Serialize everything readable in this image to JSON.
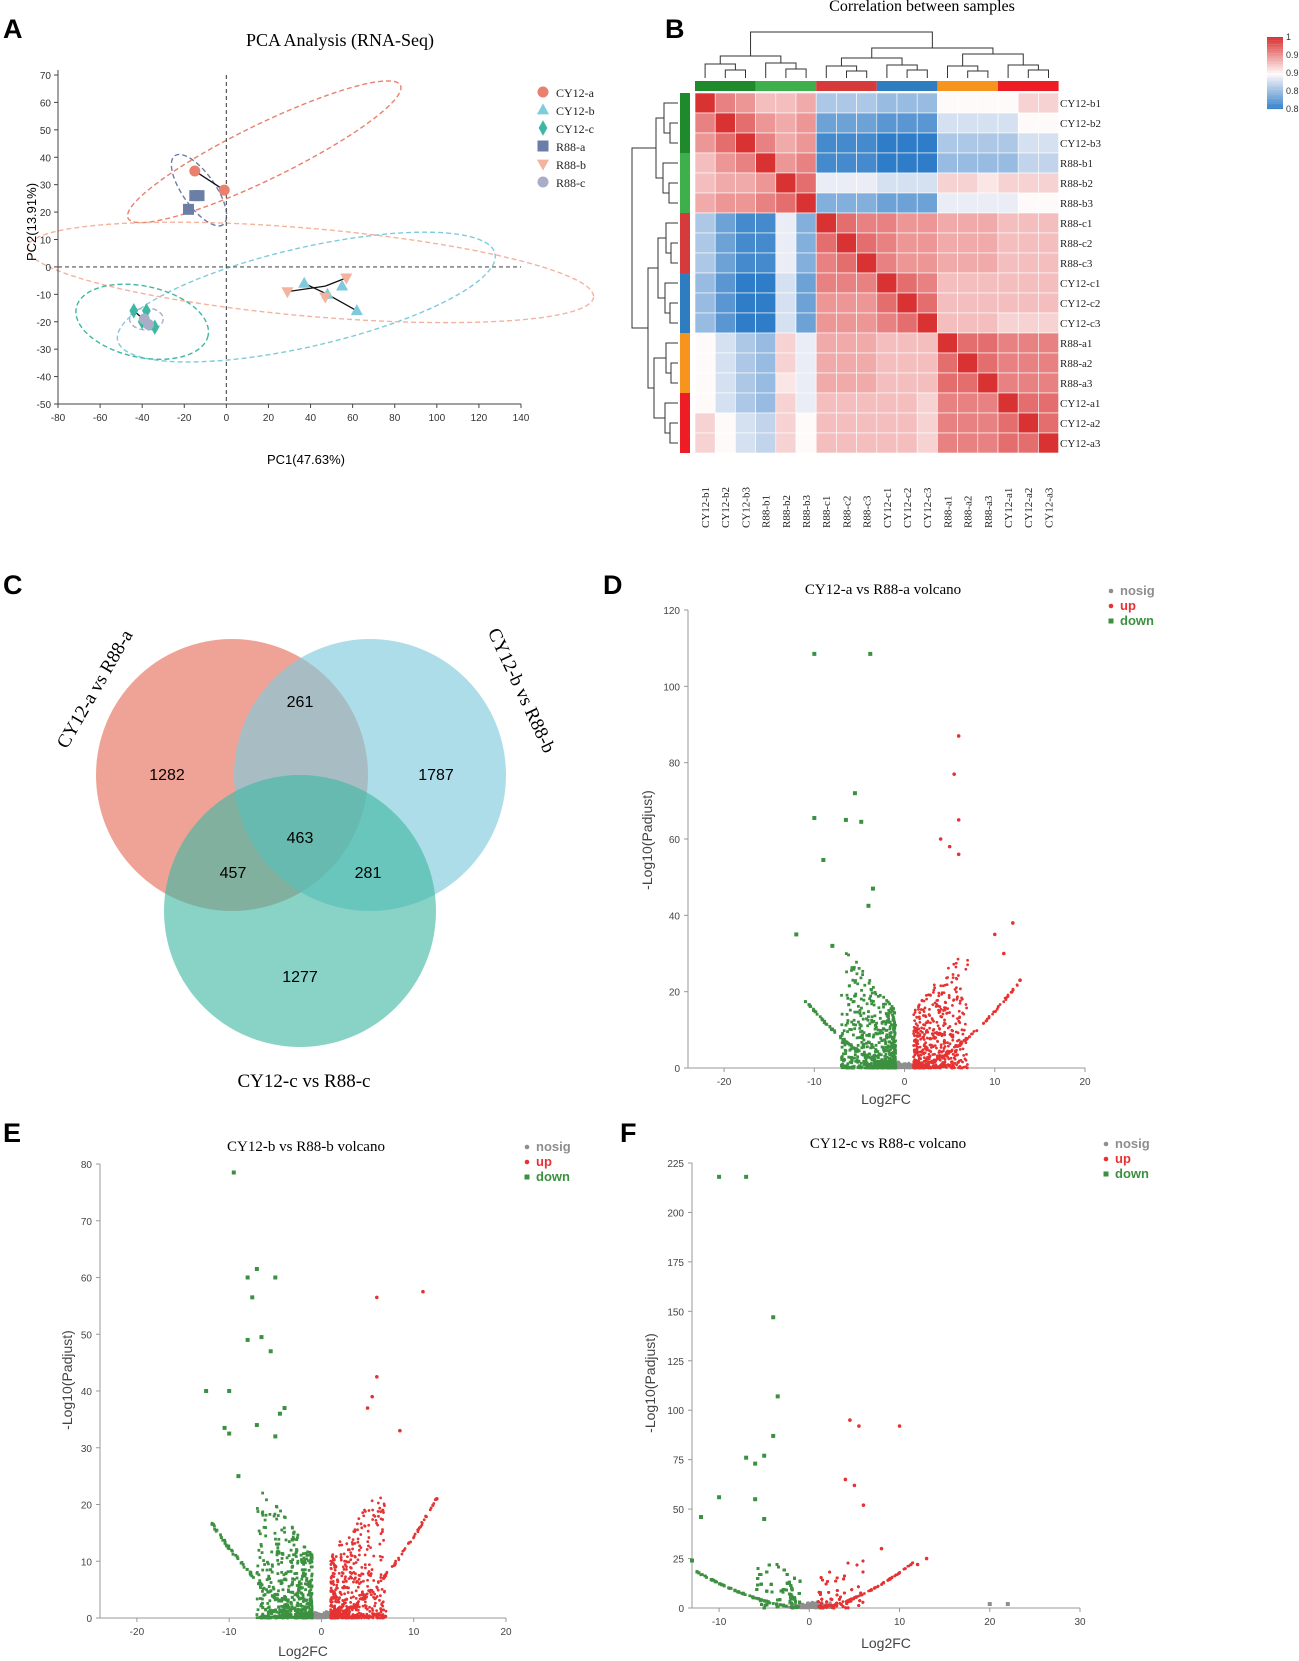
{
  "panel_labels": [
    "A",
    "B",
    "C",
    "D",
    "E",
    "F"
  ],
  "colors": {
    "CY12-a": "#e9806e",
    "CY12-b": "#7fcbdc",
    "CY12-c": "#3fb8a3",
    "R88-a": "#6b7ea8",
    "R88-b": "#f4b39e",
    "R88-c": "#a9aec8",
    "nosig": "#8e8e8e",
    "up": "#e63232",
    "down": "#3c9140"
  },
  "chart_data": [
    {
      "id": "A",
      "type": "scatter",
      "title": "PCA Analysis (RNA-Seq)",
      "xlabel": "PC1(47.63%)",
      "ylabel": "PC2(13.91%)",
      "xlim": [
        -80,
        140
      ],
      "ylim": [
        -50,
        70
      ],
      "xticks": [
        "-80",
        "-60",
        "-40",
        "-20",
        "0",
        "20",
        "40",
        "60",
        "80",
        "100",
        "120",
        "140"
      ],
      "yticks": [
        "70",
        "60",
        "50",
        "40",
        "30",
        "20",
        "10",
        "0",
        "-10",
        "-20",
        "-30",
        "-40",
        "-50"
      ],
      "legend": [
        "CY12-a",
        "CY12-b",
        "CY12-c",
        "R88-a",
        "R88-b",
        "R88-c"
      ],
      "series": [
        {
          "name": "CY12-a",
          "marker": "circle",
          "points": [
            [
              -15,
              35
            ],
            [
              -1,
              28
            ]
          ]
        },
        {
          "name": "CY12-b",
          "marker": "triangle-up",
          "points": [
            [
              37,
              -6
            ],
            [
              55,
              -7
            ],
            [
              62,
              -16
            ],
            [
              48,
              -10
            ]
          ]
        },
        {
          "name": "CY12-c",
          "marker": "diamond",
          "points": [
            [
              -44,
              -16
            ],
            [
              -38,
              -16
            ],
            [
              -34,
              -22
            ],
            [
              -40,
              -20
            ]
          ]
        },
        {
          "name": "R88-a",
          "marker": "square",
          "points": [
            [
              -13,
              26
            ],
            [
              -15,
              26
            ],
            [
              -18,
              21
            ]
          ]
        },
        {
          "name": "R88-b",
          "marker": "triangle-down",
          "points": [
            [
              29,
              -9
            ],
            [
              47,
              -11
            ],
            [
              57,
              -4
            ]
          ]
        },
        {
          "name": "R88-c",
          "marker": "circle",
          "points": [
            [
              -39,
              -19
            ],
            [
              -37,
              -21
            ]
          ]
        }
      ]
    },
    {
      "id": "B",
      "type": "heatmap",
      "title": "Correlation between samples",
      "rows": [
        "CY12-b1",
        "CY12-b2",
        "CY12-b3",
        "R88-b1",
        "R88-b2",
        "R88-b3",
        "R88-c1",
        "R88-c2",
        "R88-c3",
        "CY12-c1",
        "CY12-c2",
        "CY12-c3",
        "R88-a1",
        "R88-a2",
        "R88-a3",
        "CY12-a1",
        "CY12-a2",
        "CY12-a3"
      ],
      "cols": [
        "CY12-b1",
        "CY12-b2",
        "CY12-b3",
        "R88-b1",
        "R88-b2",
        "R88-b3",
        "R88-c1",
        "R88-c2",
        "R88-c3",
        "CY12-c1",
        "CY12-c2",
        "CY12-c3",
        "R88-a1",
        "R88-a2",
        "R88-a3",
        "CY12-a1",
        "CY12-a2",
        "CY12-a3"
      ],
      "group_colors": [
        "#1f8a2c",
        "#3db04b",
        "#d63a3a",
        "#2f7dc1",
        "#f7941d",
        "#ee1c25"
      ],
      "colorbar": {
        "min": 0.8,
        "max": 1,
        "ticks": [
          "1",
          "0.95",
          "0.9",
          "0.85",
          "0.8"
        ]
      },
      "values": [
        [
          1.0,
          0.96,
          0.95,
          0.93,
          0.93,
          0.94,
          0.86,
          0.86,
          0.86,
          0.85,
          0.85,
          0.85,
          0.9,
          0.9,
          0.9,
          0.9,
          0.92,
          0.92
        ],
        [
          0.96,
          1.0,
          0.97,
          0.95,
          0.94,
          0.95,
          0.83,
          0.83,
          0.83,
          0.82,
          0.82,
          0.82,
          0.88,
          0.88,
          0.88,
          0.88,
          0.9,
          0.9
        ],
        [
          0.95,
          0.97,
          1.0,
          0.96,
          0.94,
          0.95,
          0.81,
          0.81,
          0.81,
          0.8,
          0.8,
          0.8,
          0.86,
          0.86,
          0.86,
          0.86,
          0.88,
          0.88
        ],
        [
          0.93,
          0.95,
          0.96,
          1.0,
          0.95,
          0.96,
          0.81,
          0.81,
          0.81,
          0.8,
          0.8,
          0.79,
          0.85,
          0.85,
          0.85,
          0.85,
          0.87,
          0.87
        ],
        [
          0.93,
          0.94,
          0.94,
          0.95,
          1.0,
          0.97,
          0.89,
          0.89,
          0.89,
          0.88,
          0.88,
          0.88,
          0.92,
          0.92,
          0.91,
          0.92,
          0.92,
          0.92
        ],
        [
          0.94,
          0.95,
          0.95,
          0.96,
          0.97,
          1.0,
          0.84,
          0.84,
          0.84,
          0.83,
          0.83,
          0.83,
          0.89,
          0.89,
          0.89,
          0.89,
          0.9,
          0.9
        ],
        [
          0.86,
          0.83,
          0.81,
          0.81,
          0.89,
          0.84,
          1.0,
          0.97,
          0.96,
          0.96,
          0.95,
          0.95,
          0.94,
          0.94,
          0.94,
          0.93,
          0.93,
          0.93
        ],
        [
          0.86,
          0.83,
          0.81,
          0.81,
          0.89,
          0.84,
          0.97,
          1.0,
          0.97,
          0.96,
          0.95,
          0.95,
          0.94,
          0.94,
          0.94,
          0.93,
          0.93,
          0.93
        ],
        [
          0.86,
          0.83,
          0.81,
          0.81,
          0.89,
          0.84,
          0.96,
          0.97,
          1.0,
          0.96,
          0.95,
          0.95,
          0.94,
          0.94,
          0.94,
          0.93,
          0.93,
          0.93
        ],
        [
          0.85,
          0.82,
          0.8,
          0.8,
          0.88,
          0.83,
          0.96,
          0.96,
          0.96,
          1.0,
          0.97,
          0.96,
          0.93,
          0.93,
          0.93,
          0.93,
          0.93,
          0.93
        ],
        [
          0.85,
          0.82,
          0.8,
          0.8,
          0.88,
          0.83,
          0.95,
          0.95,
          0.95,
          0.97,
          1.0,
          0.97,
          0.93,
          0.93,
          0.93,
          0.93,
          0.93,
          0.93
        ],
        [
          0.85,
          0.82,
          0.8,
          0.79,
          0.88,
          0.83,
          0.95,
          0.95,
          0.95,
          0.96,
          0.97,
          1.0,
          0.93,
          0.93,
          0.93,
          0.92,
          0.92,
          0.92
        ],
        [
          0.9,
          0.88,
          0.86,
          0.85,
          0.92,
          0.89,
          0.94,
          0.94,
          0.94,
          0.93,
          0.93,
          0.93,
          1.0,
          0.97,
          0.97,
          0.96,
          0.96,
          0.96
        ],
        [
          0.9,
          0.88,
          0.86,
          0.85,
          0.92,
          0.89,
          0.94,
          0.94,
          0.94,
          0.93,
          0.93,
          0.93,
          0.97,
          1.0,
          0.97,
          0.96,
          0.96,
          0.96
        ],
        [
          0.9,
          0.88,
          0.86,
          0.85,
          0.91,
          0.89,
          0.94,
          0.94,
          0.94,
          0.93,
          0.93,
          0.93,
          0.97,
          0.97,
          1.0,
          0.96,
          0.96,
          0.96
        ],
        [
          0.9,
          0.88,
          0.86,
          0.85,
          0.92,
          0.89,
          0.93,
          0.93,
          0.93,
          0.93,
          0.93,
          0.92,
          0.96,
          0.96,
          0.96,
          1.0,
          0.97,
          0.97
        ],
        [
          0.92,
          0.9,
          0.88,
          0.87,
          0.92,
          0.9,
          0.93,
          0.93,
          0.93,
          0.93,
          0.93,
          0.92,
          0.96,
          0.96,
          0.96,
          0.97,
          1.0,
          0.97
        ],
        [
          0.92,
          0.9,
          0.88,
          0.87,
          0.92,
          0.9,
          0.93,
          0.93,
          0.93,
          0.93,
          0.93,
          0.92,
          0.96,
          0.96,
          0.96,
          0.97,
          0.97,
          1.0
        ]
      ]
    },
    {
      "id": "C",
      "type": "venn",
      "sets": [
        "CY12-a vs R88-a",
        "CY12-b vs R88-b",
        "CY12-c vs R88-c"
      ],
      "regions": {
        "a_only": "1282",
        "b_only": "1787",
        "c_only": "1277",
        "ab": "261",
        "ac": "457",
        "bc": "281",
        "abc": "463"
      }
    },
    {
      "id": "D",
      "type": "scatter",
      "title": "CY12-a vs R88-a volcano",
      "xlabel": "Log2FC",
      "ylabel": "-Log10(Padjust)",
      "xlim": [
        -24,
        20
      ],
      "ylim": [
        0,
        120
      ],
      "xticks": [
        "-20",
        "-10",
        "0",
        "10",
        "20"
      ],
      "yticks": [
        "0",
        "20",
        "40",
        "60",
        "80",
        "100",
        "120"
      ],
      "legend": [
        "nosig",
        "up",
        "down"
      ],
      "series": [
        {
          "name": "down",
          "points": [
            [
              -10,
              108.5
            ],
            [
              -3.8,
              108.5
            ],
            [
              -5.5,
              72
            ],
            [
              -10,
              65.5
            ],
            [
              -6.5,
              65
            ],
            [
              -4.8,
              64.5
            ],
            [
              -9,
              54.5
            ],
            [
              -3.5,
              47
            ],
            [
              -4,
              42.5
            ],
            [
              -12,
              35
            ],
            [
              -8,
              32
            ]
          ]
        },
        {
          "name": "up",
          "points": [
            [
              6,
              87
            ],
            [
              5.5,
              77
            ],
            [
              6,
              65
            ],
            [
              4,
              60
            ],
            [
              5,
              58
            ],
            [
              6,
              56
            ],
            [
              12,
              38
            ],
            [
              10,
              35
            ],
            [
              11,
              30
            ],
            [
              12.8,
              23
            ]
          ]
        }
      ]
    },
    {
      "id": "E",
      "type": "scatter",
      "title": "CY12-b vs R88-b volcano",
      "xlabel": "Log2FC",
      "ylabel": "-Log10(Padjust)",
      "xlim": [
        -24,
        20
      ],
      "ylim": [
        0,
        80
      ],
      "xticks": [
        "-20",
        "-10",
        "0",
        "10",
        "20"
      ],
      "yticks": [
        "0",
        "10",
        "20",
        "30",
        "40",
        "50",
        "60",
        "70",
        "80"
      ],
      "legend": [
        "nosig",
        "up",
        "down"
      ],
      "series": [
        {
          "name": "down",
          "points": [
            [
              -9.5,
              78.5
            ],
            [
              -7,
              61.5
            ],
            [
              -8,
              60
            ],
            [
              -5,
              60
            ],
            [
              -7.5,
              56.5
            ],
            [
              -8,
              49
            ],
            [
              -6.5,
              49.5
            ],
            [
              -5.5,
              47
            ],
            [
              -12.5,
              40
            ],
            [
              -10,
              40
            ],
            [
              -7,
              34
            ],
            [
              -4,
              37
            ],
            [
              -4.5,
              36
            ],
            [
              -10.5,
              33.5
            ],
            [
              -5,
              32
            ],
            [
              -10,
              32.5
            ],
            [
              -9,
              25
            ]
          ]
        },
        {
          "name": "up",
          "points": [
            [
              6,
              56.5
            ],
            [
              11,
              57.5
            ],
            [
              6,
              42.5
            ],
            [
              5.5,
              39
            ],
            [
              5,
              37
            ],
            [
              8.5,
              33
            ],
            [
              12.5,
              21
            ]
          ]
        }
      ]
    },
    {
      "id": "F",
      "type": "scatter",
      "title": "CY12-c vs R88-c volcano",
      "xlabel": "Log2FC",
      "ylabel": "-Log10(Padjust)",
      "xlim": [
        -13,
        30
      ],
      "ylim": [
        0,
        225
      ],
      "xticks": [
        "-10",
        "0",
        "10",
        "20",
        "30"
      ],
      "yticks": [
        "0",
        "25",
        "50",
        "75",
        "100",
        "125",
        "150",
        "175",
        "200",
        "225"
      ],
      "legend": [
        "nosig",
        "up",
        "down"
      ],
      "series": [
        {
          "name": "down",
          "points": [
            [
              -10,
              218
            ],
            [
              -7,
              218
            ],
            [
              -4,
              147
            ],
            [
              -3.5,
              107
            ],
            [
              -4,
              87
            ],
            [
              -5,
              77
            ],
            [
              -7,
              76
            ],
            [
              -6,
              73
            ],
            [
              -10,
              56
            ],
            [
              -12,
              46
            ],
            [
              -6,
              55
            ],
            [
              -5,
              45
            ],
            [
              -13,
              24
            ]
          ]
        },
        {
          "name": "up",
          "points": [
            [
              4.5,
              95
            ],
            [
              5.5,
              92
            ],
            [
              10,
              92
            ],
            [
              4,
              65
            ],
            [
              5,
              62
            ],
            [
              6,
              52
            ],
            [
              8,
              30
            ],
            [
              12,
              22
            ],
            [
              13,
              25
            ]
          ]
        },
        {
          "name": "nosig",
          "points": [
            [
              20,
              2
            ],
            [
              22,
              2
            ]
          ]
        }
      ]
    }
  ]
}
